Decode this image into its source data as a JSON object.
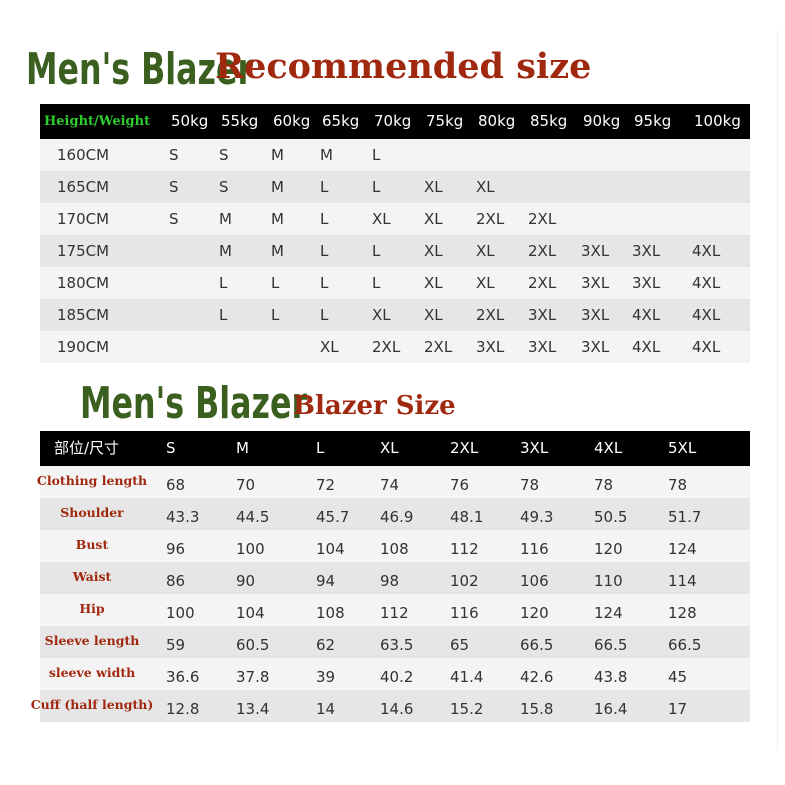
{
  "recommended": {
    "title_product": "Men's Blazer",
    "title_main": "Recommended size",
    "header_label": "Height/Weight",
    "weights": [
      "50kg",
      "55kg",
      "60kg",
      "65kg",
      "70kg",
      "75kg",
      "80kg",
      "85kg",
      "90kg",
      "95kg",
      "100kg"
    ],
    "rows": [
      {
        "height": "160CM",
        "sizes": [
          "S",
          "S",
          "M",
          "M",
          "L",
          "",
          "",
          "",
          "",
          "",
          ""
        ]
      },
      {
        "height": "165CM",
        "sizes": [
          "S",
          "S",
          "M",
          "L",
          "L",
          "XL",
          "XL",
          "",
          "",
          "",
          ""
        ]
      },
      {
        "height": "170CM",
        "sizes": [
          "S",
          "M",
          "M",
          "L",
          "XL",
          "XL",
          "2XL",
          "2XL",
          "",
          "",
          ""
        ]
      },
      {
        "height": "175CM",
        "sizes": [
          "",
          "M",
          "M",
          "L",
          "L",
          "XL",
          "XL",
          "2XL",
          "3XL",
          "3XL",
          "4XL"
        ]
      },
      {
        "height": "180CM",
        "sizes": [
          "",
          "L",
          "L",
          "L",
          "L",
          "XL",
          "XL",
          "2XL",
          "3XL",
          "3XL",
          "4XL"
        ]
      },
      {
        "height": "185CM",
        "sizes": [
          "",
          "L",
          "L",
          "L",
          "XL",
          "XL",
          "2XL",
          "3XL",
          "3XL",
          "4XL",
          "4XL"
        ]
      },
      {
        "height": "190CM",
        "sizes": [
          "",
          "",
          "",
          "XL",
          "2XL",
          "2XL",
          "3XL",
          "3XL",
          "3XL",
          "4XL",
          "4XL"
        ]
      }
    ]
  },
  "blazer": {
    "title_product": "Men's Blazer",
    "title_main": "Blazer Size",
    "header_label": "部位/尺寸",
    "sizes": [
      "S",
      "M",
      "L",
      "XL",
      "2XL",
      "3XL",
      "4XL",
      "5XL"
    ],
    "rows": [
      {
        "label": "Clothing length",
        "values": [
          "68",
          "70",
          "72",
          "74",
          "76",
          "78",
          "78",
          "78"
        ]
      },
      {
        "label": "Shoulder",
        "values": [
          "43.3",
          "44.5",
          "45.7",
          "46.9",
          "48.1",
          "49.3",
          "50.5",
          "51.7"
        ]
      },
      {
        "label": "Bust",
        "values": [
          "96",
          "100",
          "104",
          "108",
          "112",
          "116",
          "120",
          "124"
        ]
      },
      {
        "label": "Waist",
        "values": [
          "86",
          "90",
          "94",
          "98",
          "102",
          "106",
          "110",
          "114"
        ]
      },
      {
        "label": "Hip",
        "values": [
          "100",
          "104",
          "108",
          "112",
          "116",
          "120",
          "124",
          "128"
        ]
      },
      {
        "label": "Sleeve length",
        "values": [
          "59",
          "60.5",
          "62",
          "63.5",
          "65",
          "66.5",
          "66.5",
          "66.5"
        ]
      },
      {
        "label": "sleeve width",
        "values": [
          "36.6",
          "37.8",
          "39",
          "40.2",
          "41.4",
          "42.6",
          "43.8",
          "45"
        ]
      },
      {
        "label": "Cuff (half length)",
        "values": [
          "12.8",
          "13.4",
          "14",
          "14.6",
          "15.2",
          "15.8",
          "16.4",
          "17"
        ]
      }
    ]
  },
  "colors": {
    "green_title": "#3b5f1e",
    "red_title": "#a0280f",
    "header_green": "#2ecc2e",
    "header_bg": "#000000"
  }
}
